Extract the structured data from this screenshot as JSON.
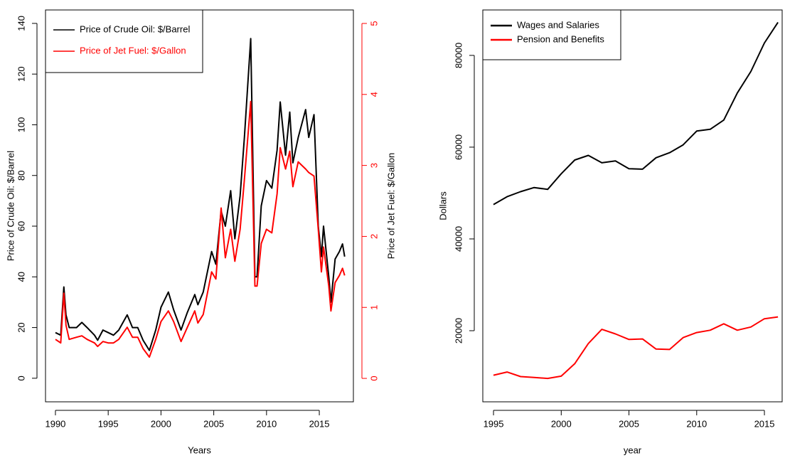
{
  "chart_data": [
    {
      "type": "line",
      "x_label": "Years",
      "y_label": "Price of Crude Oil: $/Barrel",
      "y2_label": "Price of Jet Fuel: $/Gallon",
      "x": [
        1990.0,
        1990.5,
        1990.8,
        1991.0,
        1991.3,
        1992.0,
        1992.5,
        1993.0,
        1993.7,
        1994.0,
        1994.5,
        1995.0,
        1995.5,
        1996.0,
        1996.8,
        1997.3,
        1997.8,
        1998.3,
        1998.9,
        1999.5,
        2000.0,
        2000.7,
        2001.2,
        2001.9,
        2002.5,
        2003.2,
        2003.5,
        2004.0,
        2004.8,
        2005.2,
        2005.7,
        2006.1,
        2006.6,
        2007.0,
        2007.5,
        2007.9,
        2008.5,
        2008.9,
        2009.1,
        2009.5,
        2010.0,
        2010.5,
        2011.0,
        2011.3,
        2011.8,
        2012.2,
        2012.5,
        2013.0,
        2013.7,
        2014.0,
        2014.5,
        2014.9,
        2015.2,
        2015.4,
        2015.9,
        2016.1,
        2016.5,
        2016.9,
        2017.2,
        2017.4
      ],
      "series": [
        {
          "name": "Price of Crude Oil: $/Barrel",
          "color": "#000000",
          "values": [
            18,
            17,
            36,
            25,
            20,
            20,
            22,
            20,
            17,
            15,
            19,
            18,
            17,
            19,
            25,
            20,
            20,
            15,
            11,
            19,
            28,
            34,
            27,
            19,
            26,
            33,
            29,
            34,
            50,
            45,
            66,
            60,
            74,
            55,
            72,
            95,
            134,
            40,
            40,
            68,
            78,
            75,
            90,
            109,
            88,
            105,
            85,
            95,
            106,
            95,
            104,
            60,
            48,
            60,
            40,
            30,
            47,
            50,
            53,
            48
          ]
        },
        {
          "name": "Price of Jet Fuel: $/Gallon",
          "color": "#ff0000",
          "axis": "y2",
          "values": [
            0.55,
            0.5,
            1.2,
            0.75,
            0.55,
            0.58,
            0.6,
            0.55,
            0.5,
            0.45,
            0.52,
            0.5,
            0.5,
            0.55,
            0.72,
            0.58,
            0.58,
            0.42,
            0.3,
            0.55,
            0.8,
            0.95,
            0.8,
            0.52,
            0.72,
            0.95,
            0.78,
            0.9,
            1.5,
            1.4,
            2.4,
            1.7,
            2.1,
            1.65,
            2.1,
            2.8,
            3.9,
            1.3,
            1.3,
            1.9,
            2.1,
            2.05,
            2.6,
            3.25,
            2.95,
            3.2,
            2.7,
            3.05,
            2.95,
            2.9,
            2.85,
            2.1,
            1.5,
            1.85,
            1.3,
            0.95,
            1.35,
            1.45,
            1.55,
            1.45
          ]
        }
      ],
      "xlim": [
        1989.06,
        2018.23
      ],
      "xticks": [
        1990,
        1995,
        2000,
        2005,
        2010,
        2015
      ],
      "ylim": [
        -9.3,
        145.3
      ],
      "yticks": [
        0,
        20,
        40,
        60,
        80,
        100,
        120,
        140
      ],
      "y2lim": [
        -0.33,
        5.19
      ],
      "y2ticks": [
        0,
        1,
        2,
        3,
        4,
        5
      ],
      "legend": "top-left",
      "grid": false
    },
    {
      "type": "line",
      "x_label": "year",
      "y_label": "Dollars",
      "x": [
        1995,
        1996,
        1997,
        1998,
        1999,
        2000,
        2001,
        2002,
        2003,
        2004,
        2005,
        2006,
        2007,
        2008,
        2009,
        2010,
        2011,
        2012,
        2013,
        2014,
        2015,
        2016
      ],
      "series": [
        {
          "name": "Wages and Salaries",
          "color": "#000000",
          "values": [
            47500,
            49200,
            50300,
            51200,
            50800,
            54200,
            57200,
            58200,
            56600,
            57000,
            55300,
            55200,
            57700,
            58800,
            60500,
            63500,
            63900,
            65900,
            71800,
            76500,
            82700,
            87200
          ]
        },
        {
          "name": "Pension and Benefits",
          "color": "#ff0000",
          "values": [
            10300,
            11000,
            10000,
            9800,
            9600,
            10100,
            12800,
            17200,
            20300,
            19300,
            18100,
            18200,
            16000,
            15900,
            18500,
            19600,
            20100,
            21500,
            20100,
            20800,
            22600,
            23000
          ]
        }
      ],
      "xlim": [
        1994.21,
        2016.31
      ],
      "xticks": [
        1995,
        2000,
        2005,
        2010,
        2015
      ],
      "ylim": [
        4500,
        89900
      ],
      "yticks": [
        20000,
        40000,
        60000,
        80000
      ],
      "legend": "top-left",
      "grid": false
    }
  ]
}
